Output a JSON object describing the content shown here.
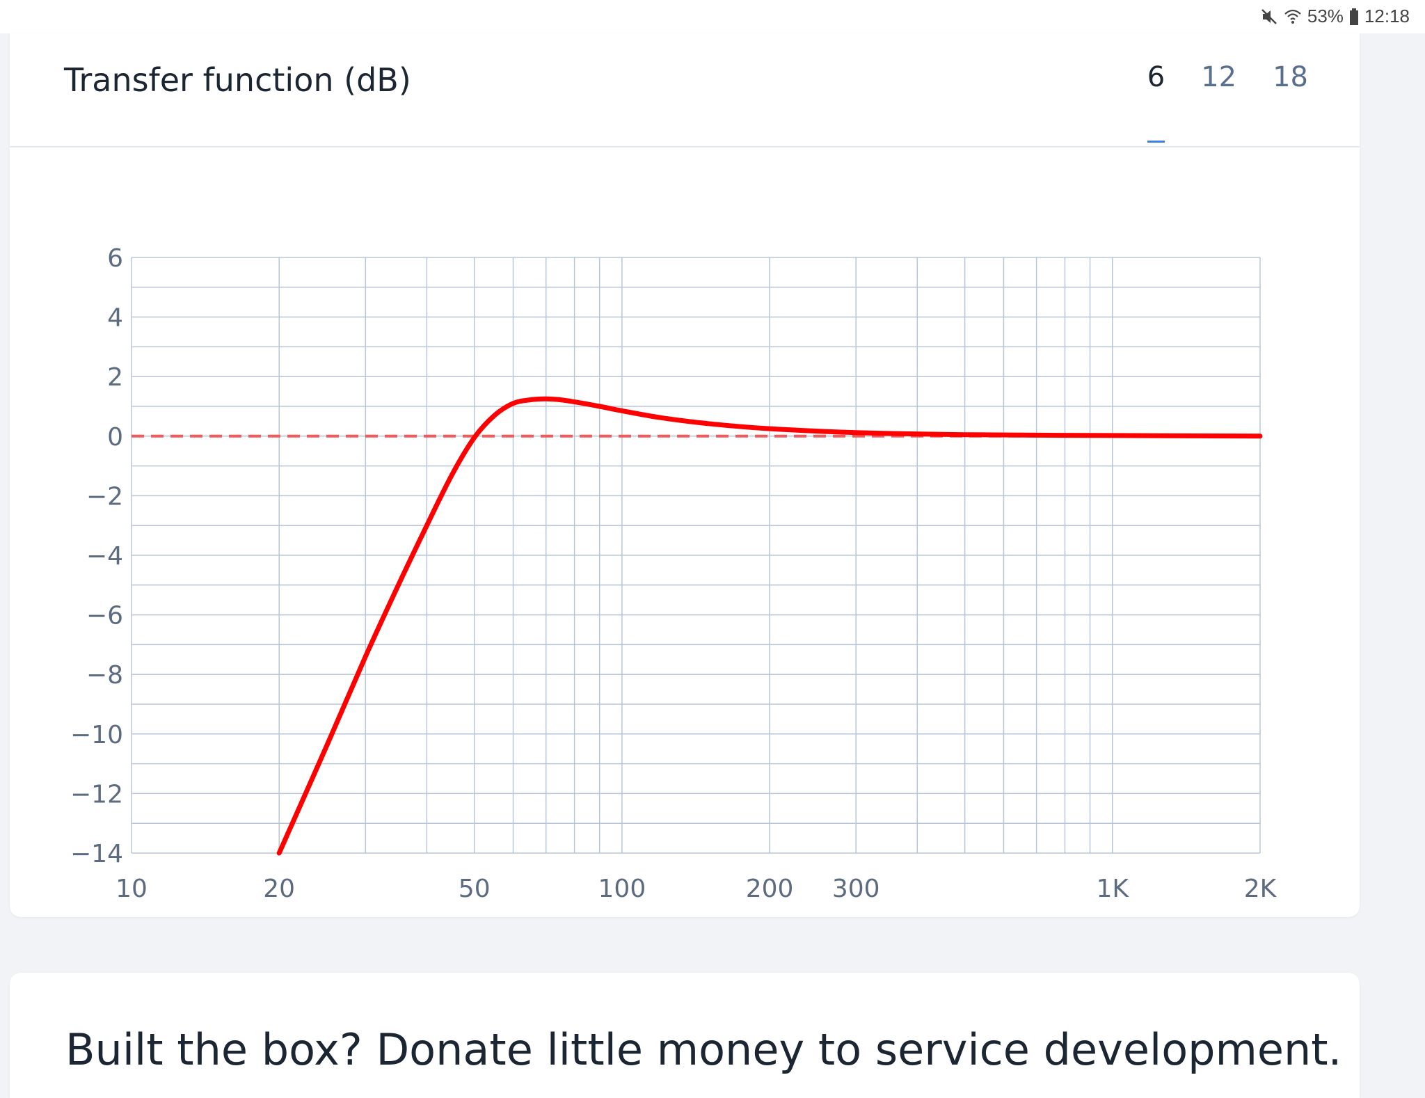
{
  "status_bar": {
    "battery": "53%",
    "time": "12:18",
    "icons": [
      "mute-icon",
      "wifi-icon",
      "battery-icon"
    ]
  },
  "card": {
    "title": "Transfer function (dB)",
    "tabs": [
      {
        "label": "6",
        "active": true
      },
      {
        "label": "12",
        "active": false
      },
      {
        "label": "18",
        "active": false
      }
    ]
  },
  "chart_data": {
    "type": "line",
    "x_scale": "log",
    "xlim": [
      10,
      2000
    ],
    "ylim": [
      -14,
      6
    ],
    "x_ticks": [
      {
        "value": 10,
        "label": "10"
      },
      {
        "value": 20,
        "label": "20"
      },
      {
        "value": 50,
        "label": "50"
      },
      {
        "value": 100,
        "label": "100"
      },
      {
        "value": 200,
        "label": "200"
      },
      {
        "value": 300,
        "label": "300"
      },
      {
        "value": 1000,
        "label": "1K"
      },
      {
        "value": 2000,
        "label": "2K"
      }
    ],
    "x_gridlines": [
      10,
      20,
      30,
      40,
      50,
      60,
      70,
      80,
      90,
      100,
      200,
      300,
      400,
      500,
      600,
      700,
      800,
      900,
      1000,
      2000
    ],
    "y_ticks": [
      6,
      4,
      2,
      0,
      -2,
      -4,
      -6,
      -8,
      -10,
      -12,
      -14
    ],
    "y_gridlines": [
      6,
      5,
      4,
      3,
      2,
      1,
      0,
      -1,
      -2,
      -3,
      -4,
      -5,
      -6,
      -7,
      -8,
      -9,
      -10,
      -11,
      -12,
      -13,
      -14
    ],
    "grid": true,
    "reference_line": {
      "y": 0,
      "style": "dashed",
      "color": "#f25a5a"
    },
    "series": [
      {
        "color": "#ff0000",
        "x": [
          20,
          25,
          30,
          35,
          40,
          45,
          50,
          55,
          60,
          65,
          70,
          75,
          80,
          90,
          100,
          120,
          150,
          200,
          300,
          500,
          1000,
          2000
        ],
        "y": [
          -14,
          -10.4,
          -7.4,
          -5.0,
          -3.0,
          -1.3,
          -0.05,
          0.7,
          1.1,
          1.22,
          1.25,
          1.22,
          1.15,
          1.0,
          0.85,
          0.62,
          0.42,
          0.25,
          0.12,
          0.05,
          0.02,
          0.0
        ]
      }
    ]
  },
  "donate": {
    "text": "Built the box? Donate little money to service development."
  }
}
